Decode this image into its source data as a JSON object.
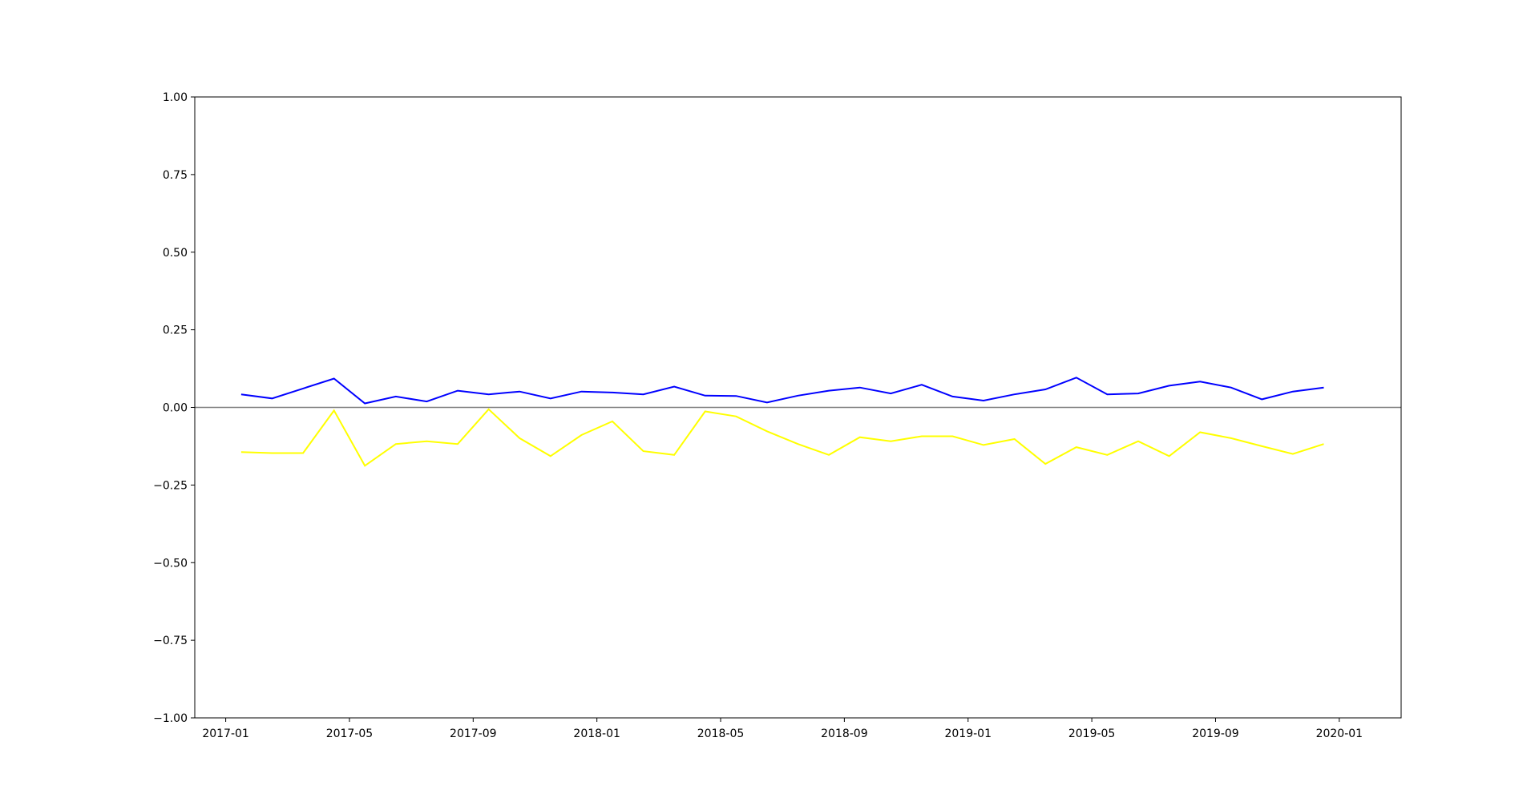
{
  "chart_data": {
    "type": "line",
    "x": [
      "2017-01",
      "2017-02",
      "2017-03",
      "2017-04",
      "2017-05",
      "2017-06",
      "2017-07",
      "2017-08",
      "2017-09",
      "2017-10",
      "2017-11",
      "2017-12",
      "2018-01",
      "2018-02",
      "2018-03",
      "2018-04",
      "2018-05",
      "2018-06",
      "2018-07",
      "2018-08",
      "2018-09",
      "2018-10",
      "2018-11",
      "2018-12",
      "2019-01",
      "2019-02",
      "2019-03",
      "2019-04",
      "2019-05",
      "2019-06",
      "2019-07",
      "2019-08",
      "2019-09",
      "2019-10",
      "2019-11",
      "2019-12"
    ],
    "series": [
      {
        "color": "#0000ff",
        "values": [
          0.042,
          0.029,
          0.061,
          0.093,
          0.013,
          0.035,
          0.019,
          0.054,
          0.042,
          0.051,
          0.029,
          0.051,
          0.048,
          0.042,
          0.067,
          0.038,
          0.037,
          0.016,
          0.038,
          0.054,
          0.064,
          0.045,
          0.073,
          0.035,
          0.022,
          0.042,
          0.058,
          0.096,
          0.042,
          0.045,
          0.07,
          0.083,
          0.064,
          0.026,
          0.051,
          0.064
        ]
      },
      {
        "color": "#ffff00",
        "values": [
          -0.144,
          -0.147,
          -0.147,
          -0.01,
          -0.188,
          -0.118,
          -0.109,
          -0.118,
          -0.006,
          -0.099,
          -0.157,
          -0.089,
          -0.045,
          -0.141,
          -0.153,
          -0.013,
          -0.029,
          -0.077,
          -0.118,
          -0.153,
          -0.096,
          -0.109,
          -0.093,
          -0.093,
          -0.121,
          -0.102,
          -0.182,
          -0.128,
          -0.153,
          -0.109,
          -0.157,
          -0.08,
          -0.099,
          -0.125,
          -0.15,
          -0.118
        ]
      }
    ],
    "hline": {
      "value": 0,
      "color": "#808080"
    },
    "xlim": [
      "2016-12",
      "2020-03"
    ],
    "xticks": [
      "2017-01",
      "2017-05",
      "2017-09",
      "2018-01",
      "2018-05",
      "2018-09",
      "2019-01",
      "2019-05",
      "2019-09",
      "2020-01"
    ],
    "ylim": [
      -1,
      1
    ],
    "yticks": [
      {
        "value": -1,
        "label": "−1.00"
      },
      {
        "value": -0.75,
        "label": "−0.75"
      },
      {
        "value": -0.5,
        "label": "−0.50"
      },
      {
        "value": -0.25,
        "label": "−0.25"
      },
      {
        "value": 0,
        "label": "0.00"
      },
      {
        "value": 0.25,
        "label": "0.25"
      },
      {
        "value": 0.5,
        "label": "0.50"
      },
      {
        "value": 0.75,
        "label": "0.75"
      },
      {
        "value": 1,
        "label": "1.00"
      }
    ]
  }
}
